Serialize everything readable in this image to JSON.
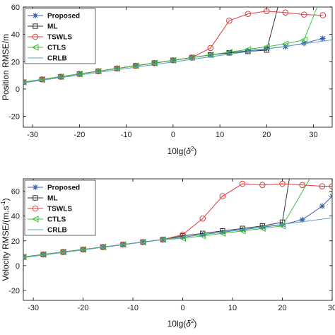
{
  "chart_data": [
    {
      "type": "line",
      "xlabel": "10lg(",
      "xlabel_sym": "δ",
      "xlabel_sup": "2",
      "xlabel_end": ")",
      "ylabel": "Position RMSE/m",
      "xlim": [
        -32,
        34
      ],
      "ylim": [
        -28,
        60
      ],
      "xticks": [
        -30,
        -20,
        -10,
        0,
        10,
        20,
        30
      ],
      "yticks": [
        -20,
        0,
        20,
        40,
        60
      ],
      "grid": false,
      "legend_position": "top-left",
      "series": [
        {
          "name": "Proposed",
          "color": "#3b5ea8",
          "marker": "star",
          "x": [
            -32,
            -28,
            -24,
            -20,
            -16,
            -12,
            -8,
            -4,
            0,
            4,
            8,
            12,
            16,
            20,
            24,
            28,
            32
          ],
          "y": [
            5,
            7,
            9,
            11,
            13,
            15,
            17,
            19,
            21,
            23,
            25,
            26.5,
            28,
            29.5,
            31,
            33.5,
            37
          ]
        },
        {
          "name": "ML",
          "color": "#333333",
          "marker": "square",
          "x": [
            -32,
            -28,
            -24,
            -20,
            -16,
            -12,
            -8,
            -4,
            0,
            4,
            8,
            12,
            16,
            20,
            22.4
          ],
          "y": [
            5,
            7,
            9,
            11,
            13,
            15,
            17,
            19,
            21,
            23,
            25,
            26.5,
            27.5,
            28.5,
            60
          ]
        },
        {
          "name": "TSWLS",
          "color": "#e03c3c",
          "marker": "circle",
          "x": [
            -32,
            -28,
            -24,
            -20,
            -16,
            -12,
            -8,
            -4,
            0,
            4,
            8,
            12,
            16,
            20,
            24,
            28,
            32
          ],
          "y": [
            5,
            7,
            9,
            11,
            13,
            15,
            17,
            19,
            21,
            23,
            30,
            50,
            55,
            57,
            56,
            54.5,
            54
          ]
        },
        {
          "name": "CTLS",
          "color": "#3cbf3c",
          "marker": "triangle-left",
          "x": [
            -32,
            -28,
            -24,
            -20,
            -16,
            -12,
            -8,
            -4,
            0,
            4,
            8,
            12,
            16,
            20,
            24,
            28,
            30.8
          ],
          "y": [
            5,
            7,
            9,
            11,
            13,
            15,
            17,
            19,
            21,
            23,
            25,
            27,
            29,
            31,
            33,
            36,
            60
          ]
        },
        {
          "name": "CRLB",
          "color": "#5aa0d0",
          "marker": "none",
          "x": [
            -32,
            34
          ],
          "y": [
            4.5,
            36
          ]
        }
      ]
    },
    {
      "type": "line",
      "xlabel": "10lg(",
      "xlabel_sym": "δ",
      "xlabel_sup": "2",
      "xlabel_end": ")",
      "ylabel": "Velocity RMSE/(m.s",
      "ylabel_sup": "-1",
      "ylabel_end": ")",
      "xlim": [
        -32,
        30
      ],
      "ylim": [
        -28,
        70
      ],
      "xticks": [
        -30,
        -20,
        -10,
        0,
        10,
        20,
        30
      ],
      "yticks": [
        -20,
        0,
        20,
        40,
        60
      ],
      "grid": false,
      "legend_position": "top-left",
      "series": [
        {
          "name": "Proposed",
          "color": "#3b5ea8",
          "marker": "star",
          "x": [
            -32,
            -28,
            -24,
            -20,
            -16,
            -12,
            -8,
            -4,
            0,
            4,
            8,
            12,
            16,
            20,
            24,
            28,
            30
          ],
          "y": [
            7,
            9,
            11,
            13,
            15,
            17,
            19,
            21,
            23,
            25,
            27,
            29,
            31,
            33,
            37,
            48,
            56
          ]
        },
        {
          "name": "ML",
          "color": "#333333",
          "marker": "square",
          "x": [
            -32,
            -28,
            -24,
            -20,
            -16,
            -12,
            -8,
            -4,
            0,
            4,
            8,
            12,
            16,
            20,
            21.4
          ],
          "y": [
            7,
            9,
            11,
            13,
            15,
            17,
            19,
            21,
            24,
            26,
            28,
            30,
            32,
            35,
            70
          ]
        },
        {
          "name": "TSWLS",
          "color": "#e03c3c",
          "marker": "circle",
          "x": [
            -32,
            -28,
            -24,
            -20,
            -16,
            -12,
            -8,
            -4,
            0,
            4,
            8,
            12,
            16,
            20,
            24,
            28,
            30
          ],
          "y": [
            7,
            9,
            11,
            13,
            15,
            17,
            19,
            21,
            25,
            38,
            56,
            66,
            65,
            66,
            65,
            64,
            64
          ]
        },
        {
          "name": "CTLS",
          "color": "#3cbf3c",
          "marker": "triangle-left",
          "x": [
            -32,
            -28,
            -24,
            -20,
            -16,
            -12,
            -8,
            -4,
            0,
            4,
            8,
            12,
            16,
            20,
            25.5
          ],
          "y": [
            7,
            9,
            11,
            13,
            15,
            17,
            19,
            21,
            22,
            24,
            26,
            28,
            30,
            32,
            70
          ]
        },
        {
          "name": "CRLB",
          "color": "#5aa0d0",
          "marker": "none",
          "x": [
            -32,
            30
          ],
          "y": [
            6.5,
            38.5
          ]
        }
      ]
    }
  ]
}
